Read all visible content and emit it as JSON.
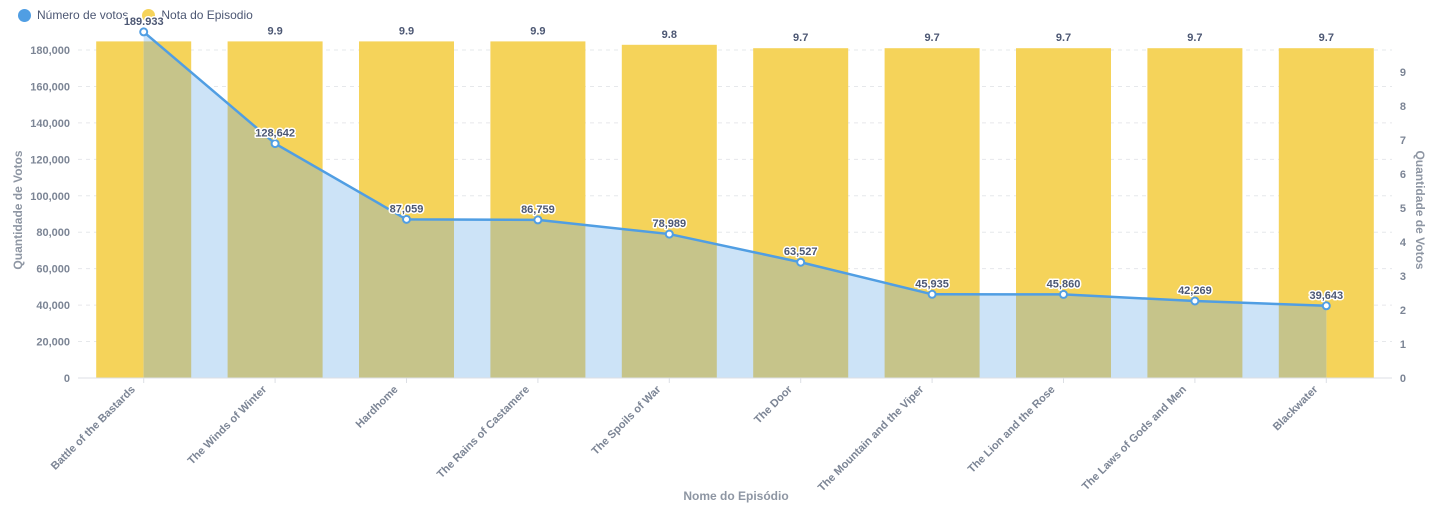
{
  "legend": {
    "series1_label": "Número de votos",
    "series2_label": "Nota do Episodio"
  },
  "colors": {
    "votes": "#509ee3",
    "votes_area": "#cce3f7",
    "rating": "#f5d35a",
    "overlap": "#c6c48a"
  },
  "chart_data": {
    "type": "bar",
    "categories": [
      "Battle of the Bastards",
      "The Winds of Winter",
      "Hardhome",
      "The Rains of Castamere",
      "The Spoils of War",
      "The Door",
      "The Mountain and the Viper",
      "The Lion and the Rose",
      "The Laws of Gods and Men",
      "Blackwater"
    ],
    "series": [
      {
        "name": "Número de votos",
        "type": "area-line",
        "axis": "left",
        "values": [
          189933,
          128642,
          87059,
          86759,
          78989,
          63527,
          45935,
          45860,
          42269,
          39643
        ],
        "labels": [
          "189.933",
          "128,642",
          "87,059",
          "86,759",
          "78,989",
          "63,527",
          "45,935",
          "45,860",
          "42,269",
          "39,643"
        ]
      },
      {
        "name": "Nota do Episodio",
        "type": "bar",
        "axis": "right",
        "values": [
          9.9,
          9.9,
          9.9,
          9.9,
          9.8,
          9.7,
          9.7,
          9.7,
          9.7,
          9.7
        ],
        "labels": [
          "",
          "9.9",
          "9.9",
          "9.9",
          "9.8",
          "9.7",
          "9.7",
          "9.7",
          "9.7",
          "9.7"
        ]
      }
    ],
    "xlabel": "Nome do Episódio",
    "ylabel": "Quantidade de Votos",
    "y2label": "Quantidade de Votos",
    "ylim": [
      0,
      180000
    ],
    "y2lim": [
      0,
      9
    ],
    "yticks": [
      "0",
      "20,000",
      "40,000",
      "60,000",
      "80,000",
      "100,000",
      "120,000",
      "140,000",
      "160,000",
      "180,000"
    ],
    "y2ticks": [
      "0",
      "1",
      "2",
      "3",
      "4",
      "5",
      "6",
      "7",
      "8",
      "9"
    ],
    "grid": true,
    "legend_position": "top-left"
  }
}
